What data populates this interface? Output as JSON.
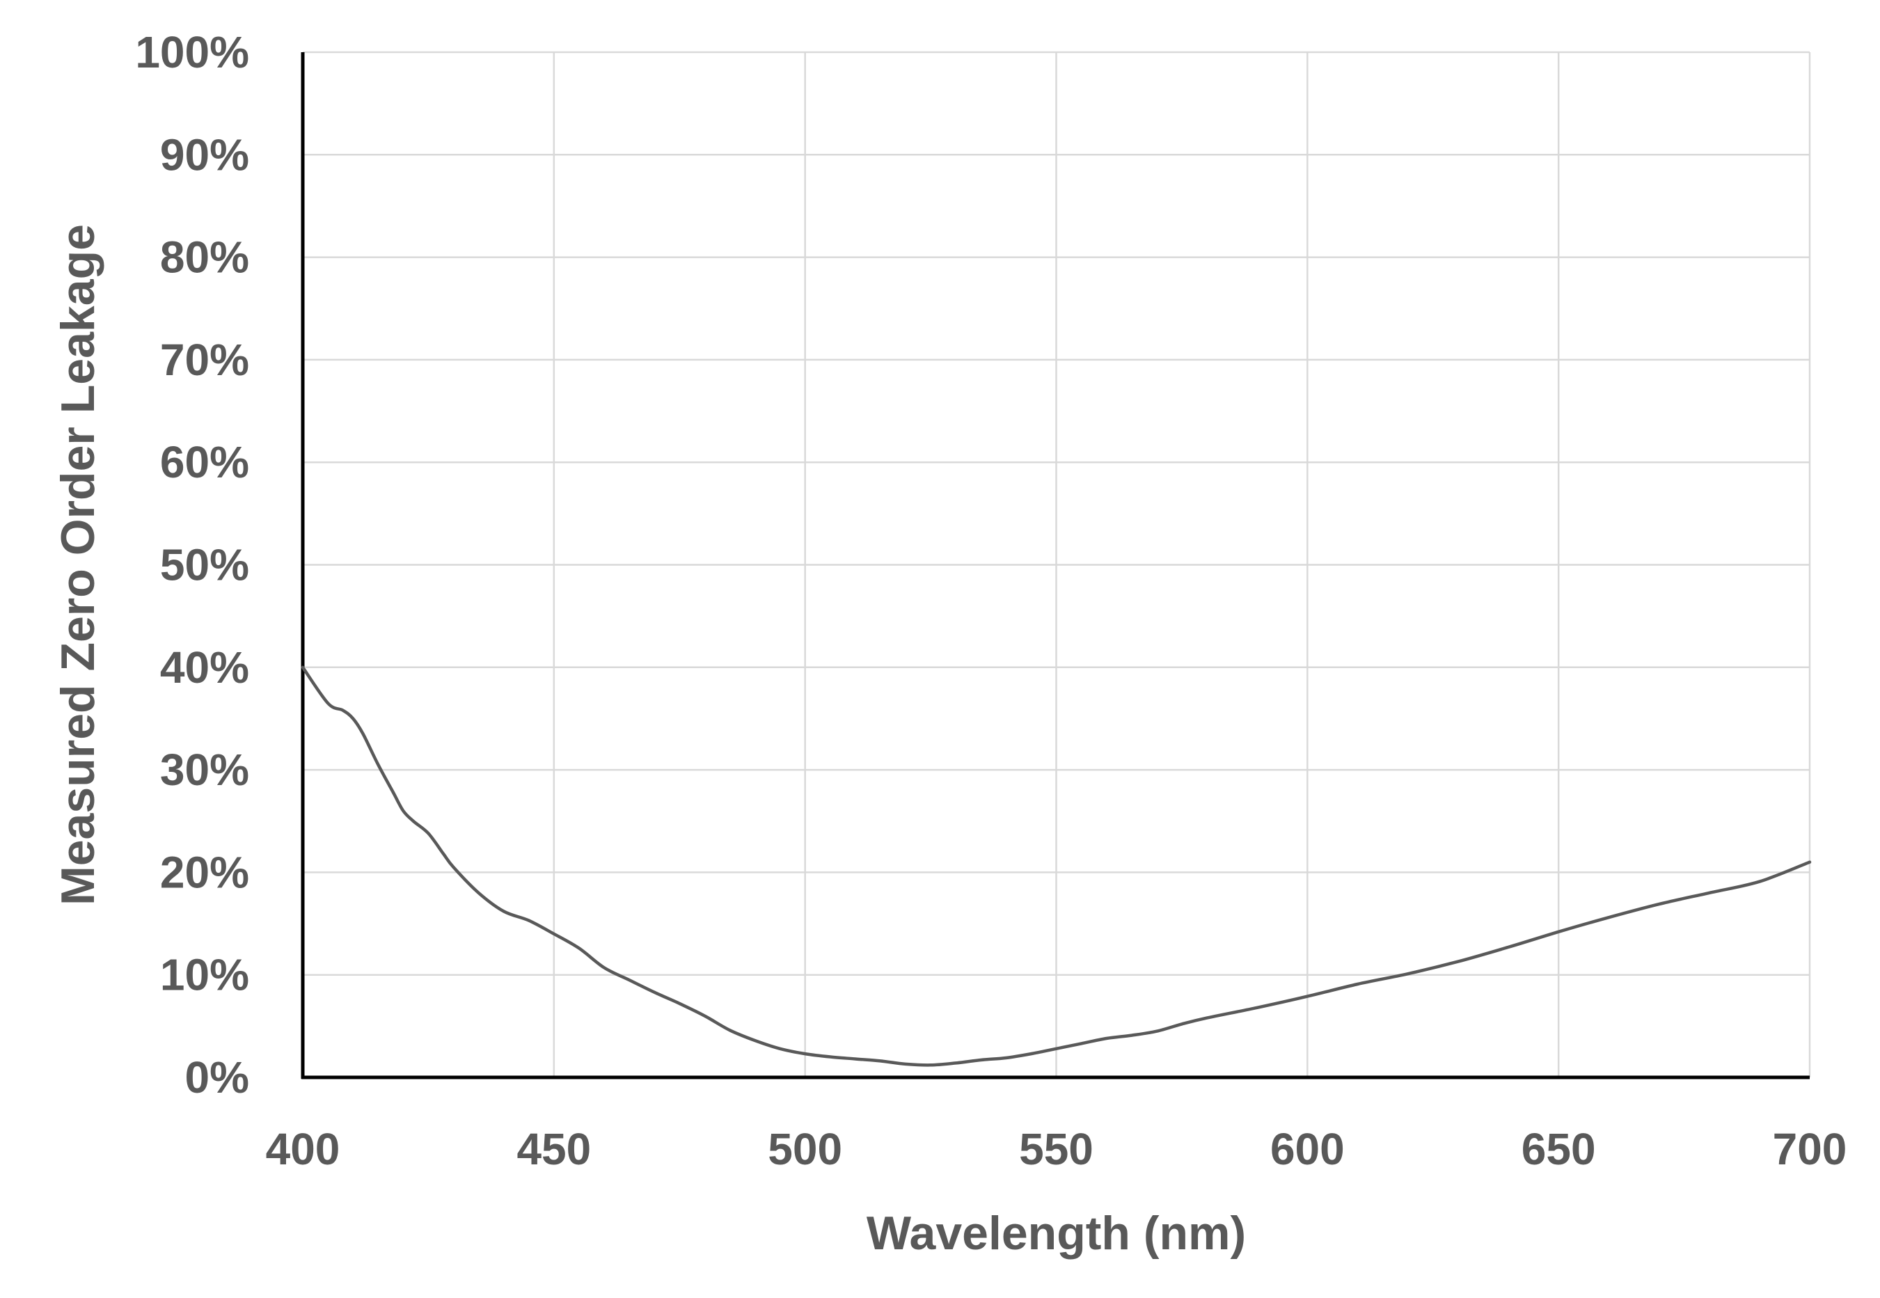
{
  "chart_data": {
    "type": "line",
    "title": "",
    "xlabel": "Wavelength (nm)",
    "ylabel": "Measured Zero Order Leakage",
    "xlim": [
      400,
      700
    ],
    "ylim": [
      0,
      100
    ],
    "x_ticks": [
      "400",
      "450",
      "500",
      "550",
      "600",
      "650",
      "700"
    ],
    "y_ticks": [
      "0%",
      "10%",
      "20%",
      "30%",
      "40%",
      "50%",
      "60%",
      "70%",
      "80%",
      "90%",
      "100%"
    ],
    "grid": true,
    "legend": "none",
    "line_color": "#595959",
    "series": [
      {
        "x": [
          400,
          405,
          408,
          410,
          412,
          415,
          418,
          420,
          422,
          425,
          428,
          430,
          435,
          440,
          445,
          450,
          455,
          460,
          465,
          470,
          475,
          480,
          485,
          490,
          495,
          500,
          505,
          510,
          515,
          520,
          525,
          530,
          535,
          540,
          545,
          550,
          555,
          560,
          565,
          570,
          575,
          580,
          590,
          600,
          610,
          620,
          630,
          640,
          650,
          660,
          670,
          680,
          690,
          700
        ],
        "y": [
          40.0,
          36.5,
          35.8,
          35.0,
          33.5,
          30.5,
          27.8,
          26.0,
          25.0,
          23.8,
          21.8,
          20.5,
          18.0,
          16.2,
          15.3,
          14.0,
          12.6,
          10.7,
          9.5,
          8.3,
          7.2,
          6.0,
          4.6,
          3.6,
          2.8,
          2.3,
          2.0,
          1.8,
          1.6,
          1.3,
          1.2,
          1.4,
          1.7,
          1.9,
          2.3,
          2.8,
          3.3,
          3.8,
          4.1,
          4.5,
          5.2,
          5.8,
          6.8,
          7.9,
          9.1,
          10.1,
          11.3,
          12.7,
          14.2,
          15.6,
          16.9,
          18.0,
          19.1,
          21.0
        ]
      }
    ]
  }
}
